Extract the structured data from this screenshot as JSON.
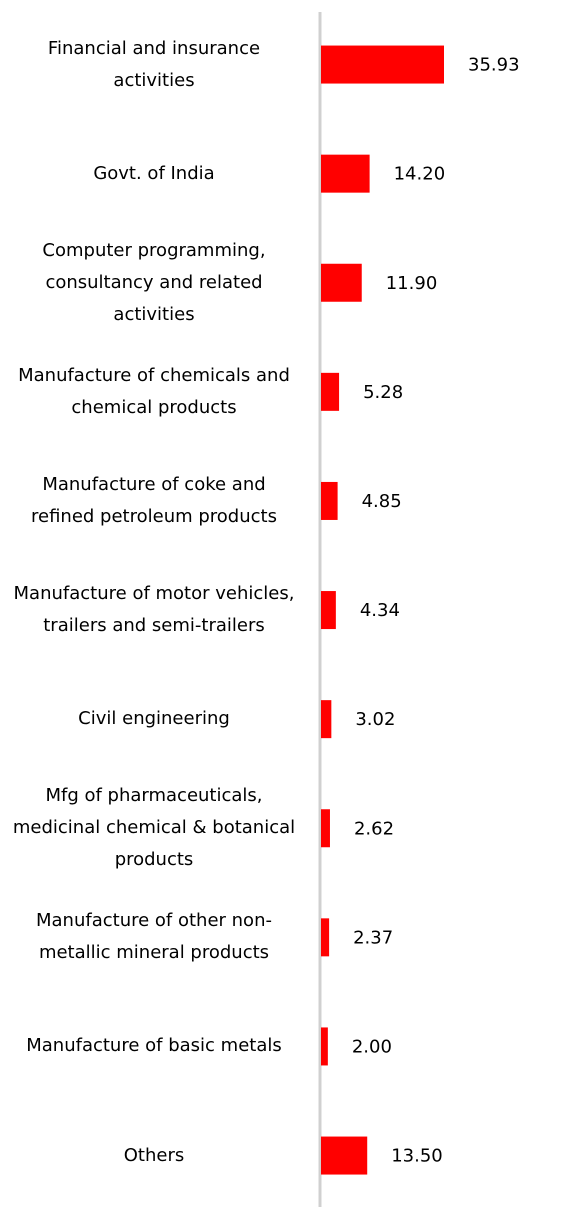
{
  "chart_data": {
    "type": "bar",
    "orientation": "horizontal",
    "color": "#ff0000",
    "categories": [
      "Financial and insurance activities",
      "Govt. of India",
      "Computer programming, consultancy and related activities",
      "Manufacture of chemicals and chemical products",
      "Manufacture of coke and refined petroleum products",
      "Manufacture of motor vehicles, trailers and semi-trailers",
      "Civil engineering",
      "Mfg of pharmaceuticals, medicinal chemical & botanical products",
      "Manufacture of other non-metallic mineral products",
      "Manufacture of basic metals",
      "Others"
    ],
    "values": [
      35.93,
      14.2,
      11.9,
      5.28,
      4.85,
      4.34,
      3.02,
      2.62,
      2.37,
      2.0,
      13.5
    ],
    "value_labels": [
      "35.93",
      "14.20",
      "11.90",
      "5.28",
      "4.85",
      "4.34",
      "3.02",
      "2.62",
      "2.37",
      "2.00",
      "13.50"
    ]
  }
}
